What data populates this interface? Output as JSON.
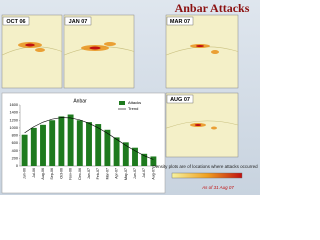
{
  "title": "Anbar Attacks",
  "maps": [
    {
      "label": "OCT 06"
    },
    {
      "label": "JAN 07"
    },
    {
      "label": "MAR 07"
    },
    {
      "label": "AUG 07"
    }
  ],
  "note": "Density plots are of locations where attacks occurred",
  "as_of": "As of 31 Aug 07",
  "chart_data": {
    "type": "bar",
    "title": "Anbar",
    "categories": [
      "Jun-06",
      "Jul-06",
      "Aug-06",
      "Sep-06",
      "Oct-06",
      "Nov-06",
      "Dec-06",
      "Jan-07",
      "Feb-07",
      "Mar-07",
      "Apr-07",
      "May-07",
      "Jun-07",
      "Jul-07",
      "Aug-07"
    ],
    "series": [
      {
        "name": "Attacks",
        "color": "#1e7a1e",
        "values": [
          820,
          1000,
          1080,
          1200,
          1300,
          1350,
          1200,
          1150,
          1100,
          950,
          750,
          620,
          480,
          320,
          250
        ]
      },
      {
        "name": "Trend",
        "color": "#000000",
        "type": "line",
        "values": [
          870,
          1030,
          1150,
          1230,
          1270,
          1260,
          1210,
          1120,
          1000,
          860,
          700,
          540,
          400,
          270,
          170
        ]
      }
    ],
    "ylim": [
      0,
      1600
    ],
    "yticks": [
      0,
      200,
      400,
      600,
      800,
      1000,
      1200,
      1400,
      1600
    ],
    "grid": false
  }
}
